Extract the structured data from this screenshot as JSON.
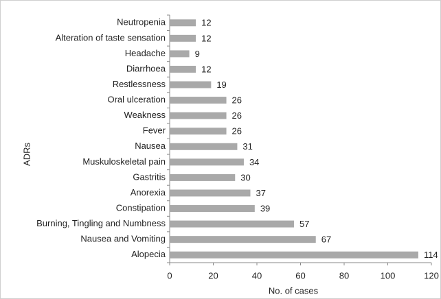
{
  "chart_data": {
    "type": "bar",
    "orientation": "horizontal",
    "categories": [
      "Neutropenia",
      "Alteration of taste sensation",
      "Headache",
      "Diarrhoea",
      "Restlessness",
      "Oral ulceration",
      "Weakness",
      "Fever",
      "Nausea",
      "Muskuloskeletal pain",
      "Gastritis",
      "Anorexia",
      "Constipation",
      "Burning, Tingling and Numbness",
      "Nausea and Vomiting",
      "Alopecia"
    ],
    "values": [
      12,
      12,
      9,
      12,
      19,
      26,
      26,
      26,
      31,
      34,
      30,
      37,
      39,
      57,
      67,
      114
    ],
    "color": "#a9a9a9",
    "xlabel": "No. of cases",
    "ylabel": "ADRs",
    "xlim": [
      0,
      120
    ],
    "xticks": [
      0,
      20,
      40,
      60,
      80,
      100,
      120
    ],
    "data_labels": true,
    "grid": false
  }
}
